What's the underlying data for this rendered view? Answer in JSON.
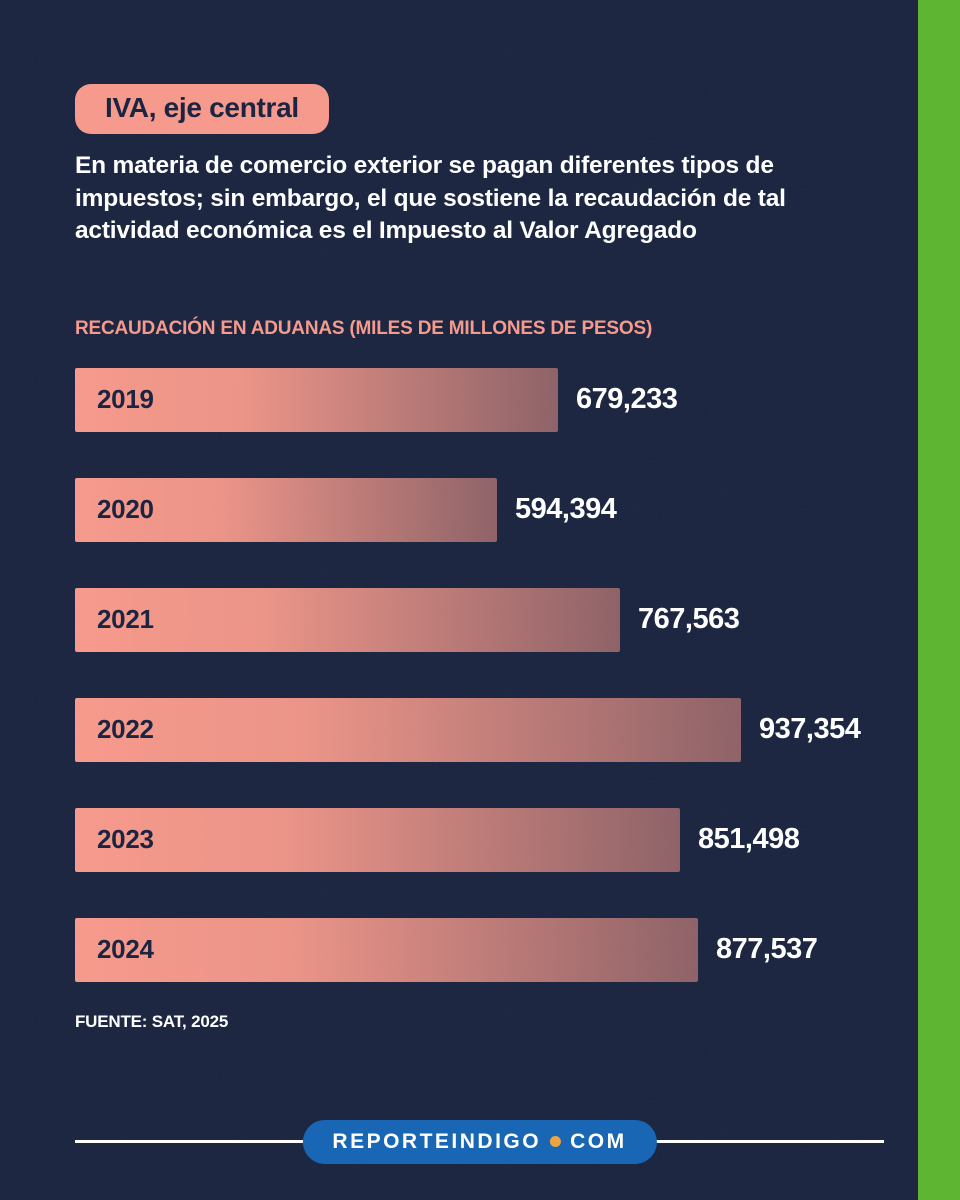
{
  "colors": {
    "background": "#18223d",
    "salmon": "#f59a8d",
    "green_stripe": "#5db531",
    "footer_pill_blue": "#1866b4",
    "footer_dot_orange": "#f0a43c",
    "text_white": "#ffffff",
    "text_dark_navy": "#1b2440"
  },
  "header": {
    "badge_label": "IVA, eje central",
    "intro_text": "En materia de comercio exterior se pagan diferentes tipos de impuestos; sin embargo, el que sostiene la recaudación de tal actividad económica es el Impuesto al Valor Agregado"
  },
  "chart_data": {
    "type": "bar",
    "orientation": "horizontal",
    "title": "RECAUDACIÓN EN ADUANAS (MILES DE MILLONES DE PESOS)",
    "categories": [
      "2019",
      "2020",
      "2021",
      "2022",
      "2023",
      "2024"
    ],
    "values": [
      679233,
      594394,
      767563,
      937354,
      851498,
      877537
    ],
    "value_labels": [
      "679,233",
      "594,394",
      "767,563",
      "937,354",
      "851,498",
      "877,537"
    ],
    "xlim": [
      0,
      937354
    ],
    "grid": false,
    "legend": "none",
    "source": "FUENTE: SAT, 2025"
  },
  "footer": {
    "brand_left": "REPORTEINDIGO",
    "brand_right": "COM"
  }
}
